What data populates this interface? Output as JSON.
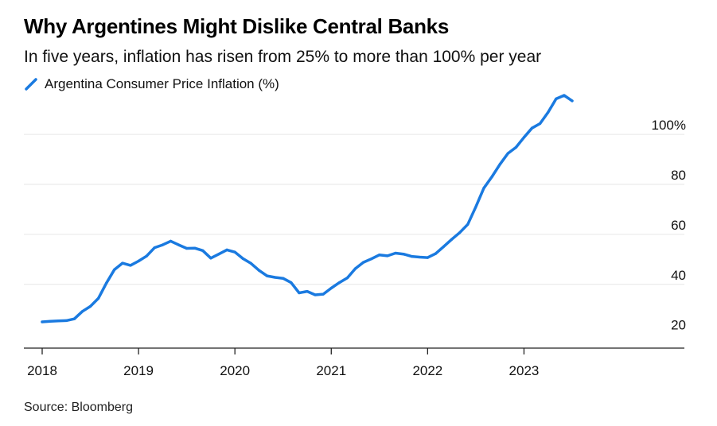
{
  "chart_data": {
    "type": "line",
    "title": "Why Argentines Might Dislike Central Banks",
    "subtitle": "In five years, inflation has risen from 25% to more than 100% per year",
    "series": [
      {
        "name": "Argentina Consumer Price Inflation (%)",
        "color": "#1a7ae0",
        "points": [
          [
            "2018-01",
            25.0
          ],
          [
            "2018-02",
            25.2
          ],
          [
            "2018-03",
            25.4
          ],
          [
            "2018-04",
            25.5
          ],
          [
            "2018-05",
            26.2
          ],
          [
            "2018-06",
            29.2
          ],
          [
            "2018-07",
            31.2
          ],
          [
            "2018-08",
            34.4
          ],
          [
            "2018-09",
            40.5
          ],
          [
            "2018-10",
            45.9
          ],
          [
            "2018-11",
            48.5
          ],
          [
            "2018-12",
            47.6
          ],
          [
            "2019-01",
            49.3
          ],
          [
            "2019-02",
            51.3
          ],
          [
            "2019-03",
            54.7
          ],
          [
            "2019-04",
            55.8
          ],
          [
            "2019-05",
            57.3
          ],
          [
            "2019-06",
            55.8
          ],
          [
            "2019-07",
            54.4
          ],
          [
            "2019-08",
            54.5
          ],
          [
            "2019-09",
            53.5
          ],
          [
            "2019-10",
            50.5
          ],
          [
            "2019-11",
            52.1
          ],
          [
            "2019-12",
            53.8
          ],
          [
            "2020-01",
            52.9
          ],
          [
            "2020-02",
            50.3
          ],
          [
            "2020-03",
            48.4
          ],
          [
            "2020-04",
            45.6
          ],
          [
            "2020-05",
            43.4
          ],
          [
            "2020-06",
            42.8
          ],
          [
            "2020-07",
            42.4
          ],
          [
            "2020-08",
            40.7
          ],
          [
            "2020-09",
            36.6
          ],
          [
            "2020-10",
            37.2
          ],
          [
            "2020-11",
            35.8
          ],
          [
            "2020-12",
            36.1
          ],
          [
            "2021-01",
            38.5
          ],
          [
            "2021-02",
            40.7
          ],
          [
            "2021-03",
            42.6
          ],
          [
            "2021-04",
            46.3
          ],
          [
            "2021-05",
            48.8
          ],
          [
            "2021-06",
            50.2
          ],
          [
            "2021-07",
            51.8
          ],
          [
            "2021-08",
            51.4
          ],
          [
            "2021-09",
            52.5
          ],
          [
            "2021-10",
            52.1
          ],
          [
            "2021-11",
            51.2
          ],
          [
            "2021-12",
            50.9
          ],
          [
            "2022-01",
            50.7
          ],
          [
            "2022-02",
            52.3
          ],
          [
            "2022-03",
            55.1
          ],
          [
            "2022-04",
            58.0
          ],
          [
            "2022-05",
            60.7
          ],
          [
            "2022-06",
            64.0
          ],
          [
            "2022-07",
            71.0
          ],
          [
            "2022-08",
            78.5
          ],
          [
            "2022-09",
            83.0
          ],
          [
            "2022-10",
            88.0
          ],
          [
            "2022-11",
            92.4
          ],
          [
            "2022-12",
            94.8
          ],
          [
            "2023-01",
            98.8
          ],
          [
            "2023-02",
            102.5
          ],
          [
            "2023-03",
            104.3
          ],
          [
            "2023-04",
            108.8
          ],
          [
            "2023-05",
            114.2
          ],
          [
            "2023-06",
            115.6
          ],
          [
            "2023-07",
            113.4
          ]
        ]
      }
    ],
    "x_ticks": [
      "2018",
      "2019",
      "2020",
      "2021",
      "2022",
      "2023"
    ],
    "y_ticks": [
      20,
      40,
      60,
      80,
      100
    ],
    "y_tick_labels": [
      "20",
      "40",
      "60",
      "80",
      "100%"
    ],
    "xlim": [
      "2018-01",
      "2024-06"
    ],
    "ylim": [
      14.5,
      115.6
    ],
    "grid": "horizontal",
    "source": "Source: Bloomberg"
  }
}
